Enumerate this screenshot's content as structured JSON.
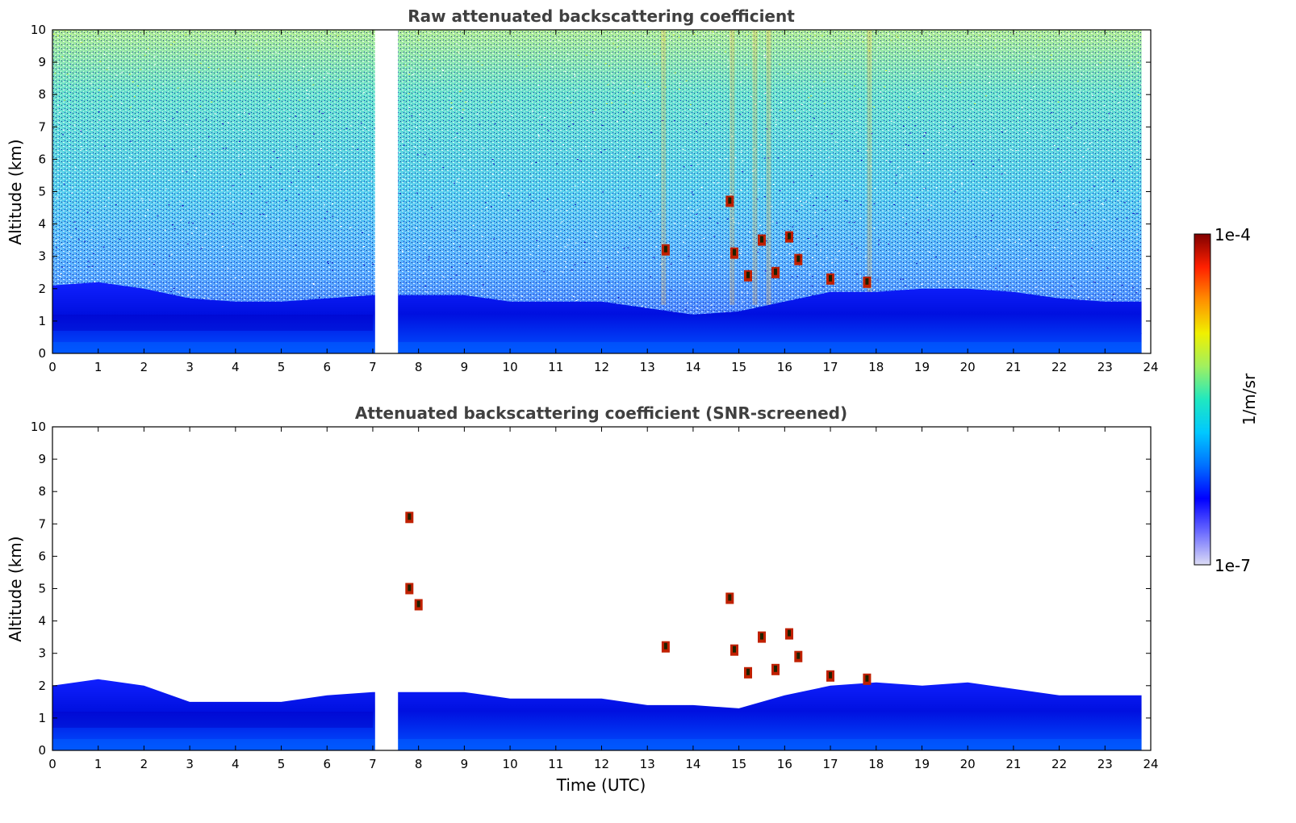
{
  "chart_data": [
    {
      "type": "heatmap",
      "title": "Raw attenuated backscattering coefficient",
      "xlabel": "",
      "ylabel": "Altitude (km)",
      "xlim": [
        0,
        24
      ],
      "ylim": [
        0,
        10
      ],
      "xticks": [
        0,
        1,
        2,
        3,
        4,
        5,
        6,
        7,
        8,
        9,
        10,
        11,
        12,
        13,
        14,
        15,
        16,
        17,
        18,
        19,
        20,
        21,
        22,
        23,
        24
      ],
      "yticks": [
        0,
        1,
        2,
        3,
        4,
        5,
        6,
        7,
        8,
        9,
        10
      ],
      "data_gap_hours": [
        7.05,
        7.55
      ],
      "data_end_hour": 23.8,
      "boundary_layer_top_km": {
        "x": [
          0,
          1,
          2,
          3,
          4,
          5,
          6,
          7,
          8,
          9,
          10,
          11,
          12,
          13,
          14,
          15,
          16,
          17,
          18,
          19,
          20,
          21,
          22,
          23,
          23.8
        ],
        "y": [
          2.1,
          2.2,
          2.0,
          1.7,
          1.6,
          1.6,
          1.7,
          1.8,
          1.8,
          1.8,
          1.6,
          1.6,
          1.6,
          1.4,
          1.2,
          1.3,
          1.6,
          1.9,
          1.9,
          2.0,
          2.0,
          1.9,
          1.7,
          1.6,
          1.6
        ]
      },
      "cloud_features": [
        {
          "x": 13.4,
          "y": 3.2
        },
        {
          "x": 14.8,
          "y": 4.7
        },
        {
          "x": 14.9,
          "y": 3.1
        },
        {
          "x": 15.5,
          "y": 3.5
        },
        {
          "x": 15.2,
          "y": 2.4
        },
        {
          "x": 15.8,
          "y": 2.5
        },
        {
          "x": 16.1,
          "y": 3.6
        },
        {
          "x": 16.3,
          "y": 2.9
        },
        {
          "x": 17.0,
          "y": 2.3
        },
        {
          "x": 17.8,
          "y": 2.2
        }
      ]
    },
    {
      "type": "heatmap",
      "title": "Attenuated backscattering coefficient (SNR-screened)",
      "xlabel": "Time (UTC)",
      "ylabel": "Altitude (km)",
      "xlim": [
        0,
        24
      ],
      "ylim": [
        0,
        10
      ],
      "xticks": [
        0,
        1,
        2,
        3,
        4,
        5,
        6,
        7,
        8,
        9,
        10,
        11,
        12,
        13,
        14,
        15,
        16,
        17,
        18,
        19,
        20,
        21,
        22,
        23,
        24
      ],
      "yticks": [
        0,
        1,
        2,
        3,
        4,
        5,
        6,
        7,
        8,
        9,
        10
      ],
      "data_gap_hours": [
        7.05,
        7.55
      ],
      "data_end_hour": 23.8,
      "screened_layer_top_km": {
        "x": [
          0,
          1,
          2,
          3,
          4,
          5,
          6,
          7,
          8,
          9,
          10,
          11,
          12,
          13,
          14,
          15,
          16,
          17,
          18,
          19,
          20,
          21,
          22,
          23,
          23.8
        ],
        "y": [
          2.0,
          2.2,
          2.0,
          1.5,
          1.5,
          1.5,
          1.7,
          1.8,
          1.8,
          1.8,
          1.6,
          1.6,
          1.6,
          1.4,
          1.4,
          1.3,
          1.7,
          2.0,
          2.1,
          2.0,
          2.1,
          1.9,
          1.7,
          1.7,
          1.7
        ]
      },
      "cloud_features": [
        {
          "x": 7.8,
          "y": 7.2
        },
        {
          "x": 7.8,
          "y": 5.0
        },
        {
          "x": 8.0,
          "y": 4.5
        },
        {
          "x": 13.4,
          "y": 3.2
        },
        {
          "x": 14.8,
          "y": 4.7
        },
        {
          "x": 14.9,
          "y": 3.1
        },
        {
          "x": 15.5,
          "y": 3.5
        },
        {
          "x": 15.2,
          "y": 2.4
        },
        {
          "x": 15.8,
          "y": 2.5
        },
        {
          "x": 16.1,
          "y": 3.6
        },
        {
          "x": 16.3,
          "y": 2.9
        },
        {
          "x": 17.0,
          "y": 2.3
        },
        {
          "x": 17.8,
          "y": 2.2
        }
      ]
    }
  ],
  "colorbar": {
    "label": "1/m/sr",
    "max_label": "1e-4",
    "min_label": "1e-7",
    "scale": "log",
    "range": [
      1e-07,
      0.0001
    ],
    "colormap": [
      "#dcdcf5",
      "#6a6aff",
      "#0000ff",
      "#0070ff",
      "#00c8ff",
      "#20e8c0",
      "#a0f060",
      "#f0f000",
      "#ff9000",
      "#ff2000",
      "#800000"
    ]
  }
}
